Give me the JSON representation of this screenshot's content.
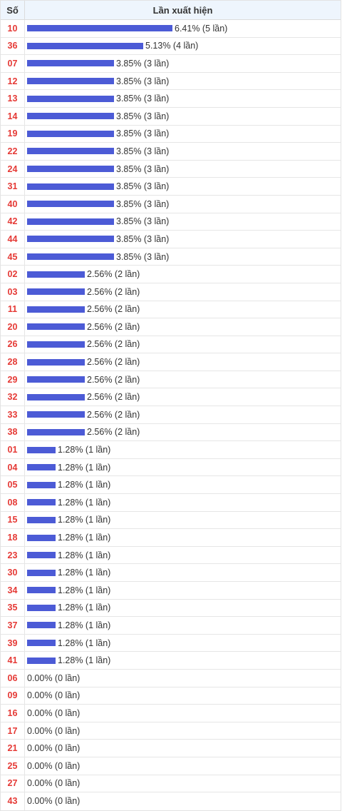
{
  "header": {
    "num_label": "Số",
    "count_label": "Lần xuất hiện"
  },
  "chart_data": {
    "type": "bar",
    "orientation": "horizontal",
    "max_count": 5,
    "rows": [
      {
        "num": "10",
        "count": 5,
        "pct": "6.41%",
        "text": "6.41% (5 lần)"
      },
      {
        "num": "36",
        "count": 4,
        "pct": "5.13%",
        "text": "5.13% (4 lần)"
      },
      {
        "num": "07",
        "count": 3,
        "pct": "3.85%",
        "text": "3.85% (3 lần)"
      },
      {
        "num": "12",
        "count": 3,
        "pct": "3.85%",
        "text": "3.85% (3 lần)"
      },
      {
        "num": "13",
        "count": 3,
        "pct": "3.85%",
        "text": "3.85% (3 lần)"
      },
      {
        "num": "14",
        "count": 3,
        "pct": "3.85%",
        "text": "3.85% (3 lần)"
      },
      {
        "num": "19",
        "count": 3,
        "pct": "3.85%",
        "text": "3.85% (3 lần)"
      },
      {
        "num": "22",
        "count": 3,
        "pct": "3.85%",
        "text": "3.85% (3 lần)"
      },
      {
        "num": "24",
        "count": 3,
        "pct": "3.85%",
        "text": "3.85% (3 lần)"
      },
      {
        "num": "31",
        "count": 3,
        "pct": "3.85%",
        "text": "3.85% (3 lần)"
      },
      {
        "num": "40",
        "count": 3,
        "pct": "3.85%",
        "text": "3.85% (3 lần)"
      },
      {
        "num": "42",
        "count": 3,
        "pct": "3.85%",
        "text": "3.85% (3 lần)"
      },
      {
        "num": "44",
        "count": 3,
        "pct": "3.85%",
        "text": "3.85% (3 lần)"
      },
      {
        "num": "45",
        "count": 3,
        "pct": "3.85%",
        "text": "3.85% (3 lần)"
      },
      {
        "num": "02",
        "count": 2,
        "pct": "2.56%",
        "text": "2.56% (2 lần)"
      },
      {
        "num": "03",
        "count": 2,
        "pct": "2.56%",
        "text": "2.56% (2 lần)"
      },
      {
        "num": "11",
        "count": 2,
        "pct": "2.56%",
        "text": "2.56% (2 lần)"
      },
      {
        "num": "20",
        "count": 2,
        "pct": "2.56%",
        "text": "2.56% (2 lần)"
      },
      {
        "num": "26",
        "count": 2,
        "pct": "2.56%",
        "text": "2.56% (2 lần)"
      },
      {
        "num": "28",
        "count": 2,
        "pct": "2.56%",
        "text": "2.56% (2 lần)"
      },
      {
        "num": "29",
        "count": 2,
        "pct": "2.56%",
        "text": "2.56% (2 lần)"
      },
      {
        "num": "32",
        "count": 2,
        "pct": "2.56%",
        "text": "2.56% (2 lần)"
      },
      {
        "num": "33",
        "count": 2,
        "pct": "2.56%",
        "text": "2.56% (2 lần)"
      },
      {
        "num": "38",
        "count": 2,
        "pct": "2.56%",
        "text": "2.56% (2 lần)"
      },
      {
        "num": "01",
        "count": 1,
        "pct": "1.28%",
        "text": "1.28% (1 lần)"
      },
      {
        "num": "04",
        "count": 1,
        "pct": "1.28%",
        "text": "1.28% (1 lần)"
      },
      {
        "num": "05",
        "count": 1,
        "pct": "1.28%",
        "text": "1.28% (1 lần)"
      },
      {
        "num": "08",
        "count": 1,
        "pct": "1.28%",
        "text": "1.28% (1 lần)"
      },
      {
        "num": "15",
        "count": 1,
        "pct": "1.28%",
        "text": "1.28% (1 lần)"
      },
      {
        "num": "18",
        "count": 1,
        "pct": "1.28%",
        "text": "1.28% (1 lần)"
      },
      {
        "num": "23",
        "count": 1,
        "pct": "1.28%",
        "text": "1.28% (1 lần)"
      },
      {
        "num": "30",
        "count": 1,
        "pct": "1.28%",
        "text": "1.28% (1 lần)"
      },
      {
        "num": "34",
        "count": 1,
        "pct": "1.28%",
        "text": "1.28% (1 lần)"
      },
      {
        "num": "35",
        "count": 1,
        "pct": "1.28%",
        "text": "1.28% (1 lần)"
      },
      {
        "num": "37",
        "count": 1,
        "pct": "1.28%",
        "text": "1.28% (1 lần)"
      },
      {
        "num": "39",
        "count": 1,
        "pct": "1.28%",
        "text": "1.28% (1 lần)"
      },
      {
        "num": "41",
        "count": 1,
        "pct": "1.28%",
        "text": "1.28% (1 lần)"
      },
      {
        "num": "06",
        "count": 0,
        "pct": "0.00%",
        "text": "0.00% (0 lần)"
      },
      {
        "num": "09",
        "count": 0,
        "pct": "0.00%",
        "text": "0.00% (0 lần)"
      },
      {
        "num": "16",
        "count": 0,
        "pct": "0.00%",
        "text": "0.00% (0 lần)"
      },
      {
        "num": "17",
        "count": 0,
        "pct": "0.00%",
        "text": "0.00% (0 lần)"
      },
      {
        "num": "21",
        "count": 0,
        "pct": "0.00%",
        "text": "0.00% (0 lần)"
      },
      {
        "num": "25",
        "count": 0,
        "pct": "0.00%",
        "text": "0.00% (0 lần)"
      },
      {
        "num": "27",
        "count": 0,
        "pct": "0.00%",
        "text": "0.00% (0 lần)"
      },
      {
        "num": "43",
        "count": 0,
        "pct": "0.00%",
        "text": "0.00% (0 lần)"
      }
    ]
  },
  "colors": {
    "bar": "#4c5bd6",
    "number": "#e53935",
    "header_bg": "#eef5fd"
  }
}
